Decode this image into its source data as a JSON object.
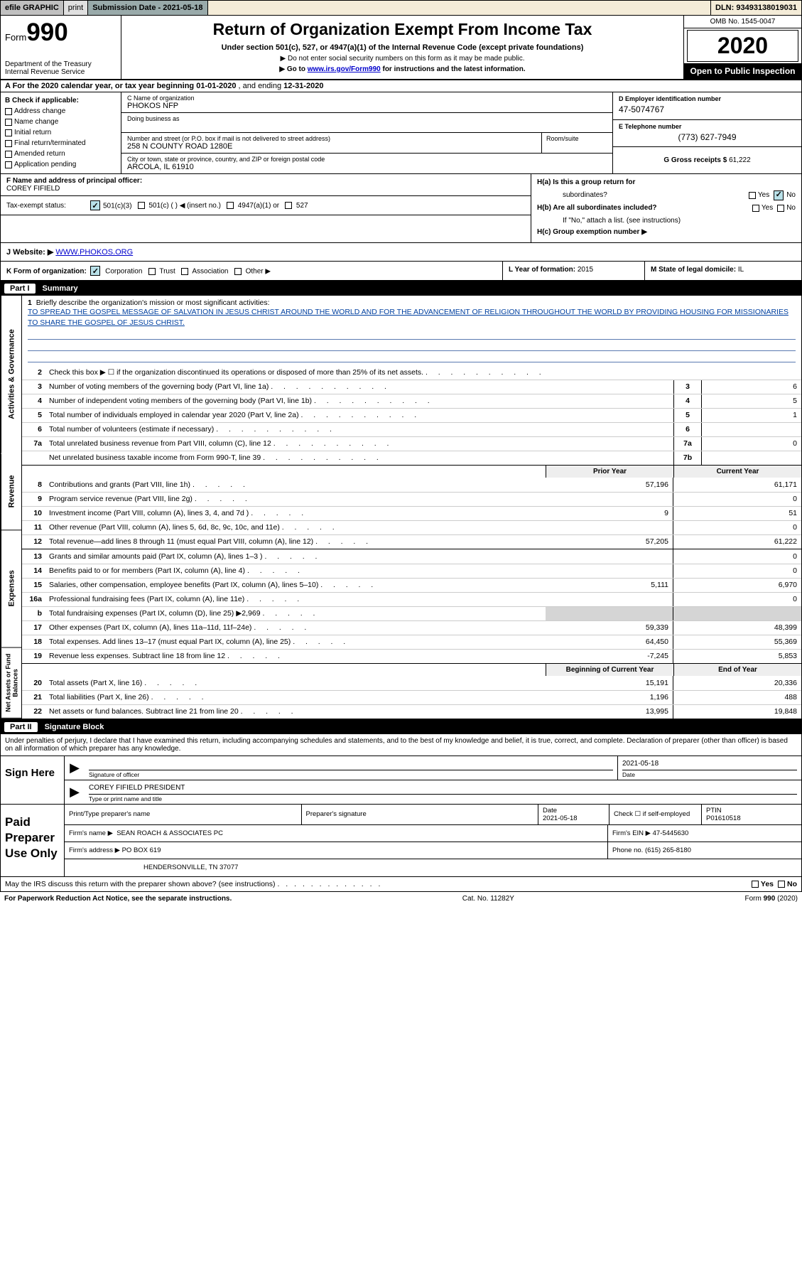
{
  "efile": {
    "graphic": "efile GRAPHIC",
    "print": "print",
    "subdate_label": "Submission Date - 2021-05-18",
    "dln": "DLN: 93493138019031"
  },
  "hdr": {
    "form_prefix": "Form",
    "form_num": "990",
    "dept": "Department of the Treasury\nInternal Revenue Service",
    "title": "Return of Organization Exempt From Income Tax",
    "sub1": "Under section 501(c), 527, or 4947(a)(1) of the Internal Revenue Code (except private foundations)",
    "sub2": "▶ Do not enter social security numbers on this form as it may be made public.",
    "sub3_pre": "▶ Go to ",
    "sub3_link": "www.irs.gov/Form990",
    "sub3_post": " for instructions and the latest information.",
    "omb": "OMB No. 1545-0047",
    "year": "2020",
    "open_pub": "Open to Public Inspection"
  },
  "rowA": {
    "text_pre": "A For the 2020 calendar year, or tax year beginning ",
    "begin": "01-01-2020",
    "mid": "  , and ending ",
    "end": "12-31-2020"
  },
  "boxB": {
    "label": "B Check if applicable:",
    "items": [
      "Address change",
      "Name change",
      "Initial return",
      "Final return/terminated",
      "Amended return",
      "Application pending"
    ]
  },
  "boxC": {
    "name_lab": "C Name of organization",
    "name": "PHOKOS NFP",
    "dba_lab": "Doing business as",
    "dba": "",
    "addr_lab": "Number and street (or P.O. box if mail is not delivered to street address)",
    "addr": "258 N COUNTY ROAD 1280E",
    "room_lab": "Room/suite",
    "city_lab": "City or town, state or province, country, and ZIP or foreign postal code",
    "city": "ARCOLA, IL  61910"
  },
  "boxD": {
    "lab": "D Employer identification number",
    "val": "47-5074767"
  },
  "boxE": {
    "lab": "E Telephone number",
    "val": "(773) 627-7949"
  },
  "boxG": {
    "lab": "G Gross receipts $",
    "val": "61,222"
  },
  "boxF": {
    "lab": "F  Name and address of principal officer:",
    "val": "COREY FIFIELD"
  },
  "taxstatus": {
    "lab": "Tax-exempt status:",
    "o1": "501(c)(3)",
    "o2": "501(c) (  ) ◀ (insert no.)",
    "o3": "4947(a)(1) or",
    "o4": "527"
  },
  "boxH": {
    "a_lab": "H(a)  Is this a group return for",
    "a_lab2": "subordinates?",
    "b_lab": "H(b)  Are all subordinates included?",
    "b_note": "If \"No,\" attach a list. (see instructions)",
    "c_lab": "H(c)  Group exemption number ▶",
    "yes": "Yes",
    "no": "No"
  },
  "rowJ": {
    "lab": "J  Website: ▶ ",
    "val": "WWW.PHOKOS.ORG"
  },
  "rowK": {
    "lab": "K Form of organization:",
    "opts": [
      "Corporation",
      "Trust",
      "Association",
      "Other �~"
    ]
  },
  "rowL": {
    "lab": "L Year of formation:",
    "val": "2015"
  },
  "rowM": {
    "lab": "M State of legal domicile:",
    "val": "IL"
  },
  "part1": {
    "id": "Part I",
    "title": "Summary"
  },
  "sidetabs": {
    "gov": "Activities & Governance",
    "rev": "Revenue",
    "exp": "Expenses",
    "net": "Net Assets or Fund Balances"
  },
  "mission": {
    "num": "1",
    "lab": "Briefly describe the organization's mission or most significant activities:",
    "text": "TO SPREAD THE GOSPEL MESSAGE OF SALVATION IN JESUS CHRIST AROUND THE WORLD AND FOR THE ADVANCEMENT OF RELIGION THROUGHOUT THE WORLD BY PROVIDING HOUSING FOR MISSIONARIES TO SHARE THE GOSPEL OF JESUS CHRIST."
  },
  "gov_lines": [
    {
      "n": "2",
      "t": "Check this box ▶ ☐  if the organization discontinued its operations or disposed of more than 25% of its net assets.",
      "box": "",
      "v": ""
    },
    {
      "n": "3",
      "t": "Number of voting members of the governing body (Part VI, line 1a)",
      "box": "3",
      "v": "6"
    },
    {
      "n": "4",
      "t": "Number of independent voting members of the governing body (Part VI, line 1b)",
      "box": "4",
      "v": "5"
    },
    {
      "n": "5",
      "t": "Total number of individuals employed in calendar year 2020 (Part V, line 2a)",
      "box": "5",
      "v": "1"
    },
    {
      "n": "6",
      "t": "Total number of volunteers (estimate if necessary)",
      "box": "6",
      "v": ""
    },
    {
      "n": "7a",
      "t": "Total unrelated business revenue from Part VIII, column (C), line 12",
      "box": "7a",
      "v": "0"
    },
    {
      "n": "",
      "t": "Net unrelated business taxable income from Form 990-T, line 39",
      "box": "7b",
      "v": ""
    }
  ],
  "col_headers": {
    "prev": "Prior Year",
    "curr": "Current Year"
  },
  "rev_lines": [
    {
      "n": "8",
      "t": "Contributions and grants (Part VIII, line 1h)",
      "p": "57,196",
      "c": "61,171"
    },
    {
      "n": "9",
      "t": "Program service revenue (Part VIII, line 2g)",
      "p": "",
      "c": "0"
    },
    {
      "n": "10",
      "t": "Investment income (Part VIII, column (A), lines 3, 4, and 7d )",
      "p": "9",
      "c": "51"
    },
    {
      "n": "11",
      "t": "Other revenue (Part VIII, column (A), lines 5, 6d, 8c, 9c, 10c, and 11e)",
      "p": "",
      "c": "0"
    },
    {
      "n": "12",
      "t": "Total revenue—add lines 8 through 11 (must equal Part VIII, column (A), line 12)",
      "p": "57,205",
      "c": "61,222"
    }
  ],
  "exp_lines": [
    {
      "n": "13",
      "t": "Grants and similar amounts paid (Part IX, column (A), lines 1–3 )",
      "p": "",
      "c": "0"
    },
    {
      "n": "14",
      "t": "Benefits paid to or for members (Part IX, column (A), line 4)",
      "p": "",
      "c": "0"
    },
    {
      "n": "15",
      "t": "Salaries, other compensation, employee benefits (Part IX, column (A), lines 5–10)",
      "p": "5,111",
      "c": "6,970"
    },
    {
      "n": "16a",
      "t": "Professional fundraising fees (Part IX, column (A), line 11e)",
      "p": "",
      "c": "0"
    },
    {
      "n": "b",
      "t": "Total fundraising expenses (Part IX, column (D), line 25) ▶2,969",
      "p": "grey",
      "c": "grey"
    },
    {
      "n": "17",
      "t": "Other expenses (Part IX, column (A), lines 11a–11d, 11f–24e)",
      "p": "59,339",
      "c": "48,399"
    },
    {
      "n": "18",
      "t": "Total expenses. Add lines 13–17 (must equal Part IX, column (A), line 25)",
      "p": "64,450",
      "c": "55,369"
    },
    {
      "n": "19",
      "t": "Revenue less expenses. Subtract line 18 from line 12",
      "p": "-7,245",
      "c": "5,853"
    }
  ],
  "net_headers": {
    "beg": "Beginning of Current Year",
    "end": "End of Year"
  },
  "net_lines": [
    {
      "n": "20",
      "t": "Total assets (Part X, line 16)",
      "p": "15,191",
      "c": "20,336"
    },
    {
      "n": "21",
      "t": "Total liabilities (Part X, line 26)",
      "p": "1,196",
      "c": "488"
    },
    {
      "n": "22",
      "t": "Net assets or fund balances. Subtract line 21 from line 20",
      "p": "13,995",
      "c": "19,848"
    }
  ],
  "part2": {
    "id": "Part II",
    "title": "Signature Block"
  },
  "sig": {
    "intro": "Under penalties of perjury, I declare that I have examined this return, including accompanying schedules and statements, and to the best of my knowledge and belief, it is true, correct, and complete. Declaration of preparer (other than officer) is based on all information of which preparer has any knowledge.",
    "here": "Sign Here",
    "officer_lab": "Signature of officer",
    "date_lab": "Date",
    "date_val": "2021-05-18",
    "officer_name": "COREY FIFIELD  PRESIDENT",
    "name_lab": "Type or print name and title"
  },
  "prep": {
    "left": "Paid Preparer Use Only",
    "name_lab": "Print/Type preparer's name",
    "sig_lab": "Preparer's signature",
    "pdate_lab": "Date",
    "pdate_val": "2021-05-18",
    "check_lab": "Check ☐ if self-employed",
    "ptin_lab": "PTIN",
    "ptin_val": "P01610518",
    "firm_name_lab": "Firm's name    ▶",
    "firm_name": "SEAN ROACH & ASSOCIATES PC",
    "firm_ein_lab": "Firm's EIN ▶",
    "firm_ein": "47-5445630",
    "firm_addr_lab": "Firm's address ▶",
    "firm_addr1": "PO BOX 619",
    "firm_addr2": "HENDERSONVILLE, TN  37077",
    "phone_lab": "Phone no.",
    "phone": "(615) 265-8180"
  },
  "discuss": {
    "q": "May the IRS discuss this return with the preparer shown above? (see instructions)",
    "yes": "Yes",
    "no": "No"
  },
  "footer": {
    "l": "For Paperwork Reduction Act Notice, see the separate instructions.",
    "m": "Cat. No. 11282Y",
    "r": "Form 990 (2020)"
  },
  "col_widths": {
    "linenum": 34,
    "boxnum": 40,
    "valcol": 180
  }
}
